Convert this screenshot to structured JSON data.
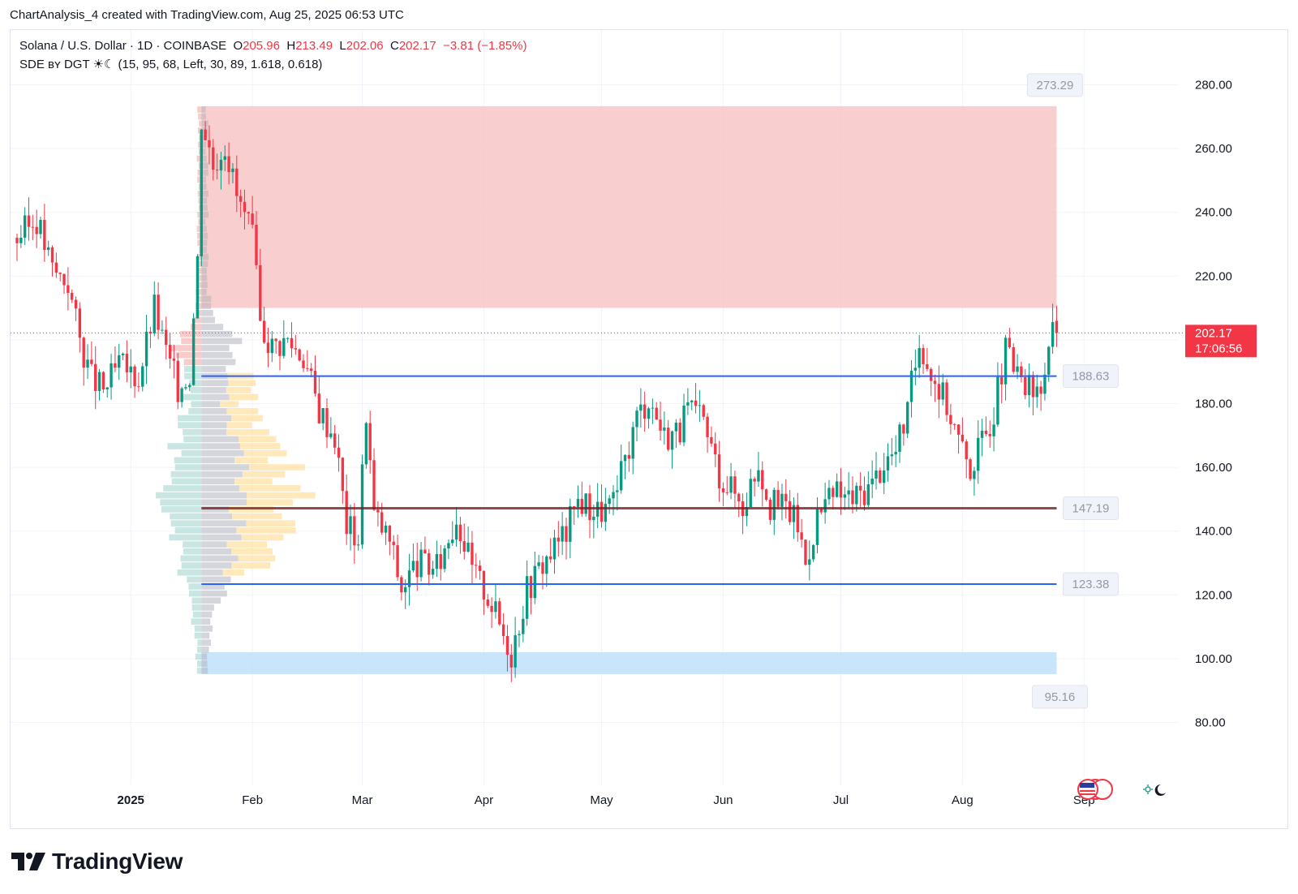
{
  "caption": "ChartAnalysis_4 created with TradingView.com, Aug 25, 2025 06:53 UTC",
  "legend": {
    "symbol": "Solana / U.S. Dollar · 1D · COINBASE",
    "open_label": "O",
    "open": "205.96",
    "high_label": "H",
    "high": "213.49",
    "low_label": "L",
    "low": "202.06",
    "close_label": "C",
    "close": "202.17",
    "change": "−3.81 (−1.85%)",
    "indicator": "SDE ʙʏ DGT ☀☾ (15, 95, 68, Left, 30, 89, 1.618, 0.618)"
  },
  "price_badge": {
    "price": "202.17",
    "countdown": "17:06:56"
  },
  "brand": "TradingView",
  "icons": {
    "logo": "tradingview-logo-icon",
    "session": "day-night-icon",
    "flags": "us-flag-icon"
  },
  "colors": {
    "up": "#089981",
    "down": "#f23645",
    "level": "#2962ff",
    "poc": "#7b1e1e",
    "supply_zone": "#f7c5c5",
    "demand_zone": "#bfe0fb",
    "badge": "#f23645"
  },
  "chart_data": {
    "type": "candlestick",
    "title": "Solana / U.S. Dollar · 1D · COINBASE",
    "ylim": [
      68,
      292
    ],
    "yticks": [
      "280.00",
      "260.00",
      "240.00",
      "220.00",
      "200.00",
      "180.00",
      "160.00",
      "140.00",
      "120.00",
      "100.00",
      "80.00"
    ],
    "ytick_values": [
      280,
      260,
      240,
      220,
      200,
      180,
      160,
      140,
      120,
      100,
      80
    ],
    "xticks": [
      "2025",
      "Feb",
      "Mar",
      "Apr",
      "May",
      "Jun",
      "Jul",
      "Aug",
      "Sep"
    ],
    "xtick_dates": [
      "2025-01-01",
      "2025-02-01",
      "2025-03-01",
      "2025-04-01",
      "2025-05-01",
      "2025-06-01",
      "2025-07-01",
      "2025-08-01",
      "2025-09-01"
    ],
    "x_range": [
      "2024-12-03",
      "2025-09-21"
    ],
    "levels": [
      {
        "value": 273.29,
        "label": "273.29",
        "role": "supply-zone-top"
      },
      {
        "value": 188.63,
        "label": "188.63",
        "role": "support"
      },
      {
        "value": 147.19,
        "label": "147.19",
        "role": "poc"
      },
      {
        "value": 123.38,
        "label": "123.38",
        "role": "support"
      },
      {
        "value": 95.16,
        "label": "95.16",
        "role": "demand-zone-bottom"
      }
    ],
    "supply_zone": {
      "from": 210,
      "to": 273.29,
      "start": "2025-01-19",
      "end": "2025-08-25"
    },
    "demand_zone": {
      "from": 95.16,
      "to": 102,
      "start": "2025-01-19",
      "end": "2025-08-25"
    },
    "volume_profile": {
      "anchor": "2025-01-19",
      "range": [
        95,
        273
      ]
    },
    "last_price": 202.17,
    "anchors": [
      {
        "date": "2024-12-03",
        "close": 232
      },
      {
        "date": "2024-12-08",
        "close": 238
      },
      {
        "date": "2024-12-12",
        "close": 222
      },
      {
        "date": "2024-12-16",
        "close": 218
      },
      {
        "date": "2024-12-19",
        "close": 200
      },
      {
        "date": "2024-12-22",
        "close": 188
      },
      {
        "date": "2024-12-25",
        "close": 184
      },
      {
        "date": "2024-12-29",
        "close": 192
      },
      {
        "date": "2025-01-03",
        "close": 188
      },
      {
        "date": "2025-01-07",
        "close": 210
      },
      {
        "date": "2025-01-10",
        "close": 196
      },
      {
        "date": "2025-01-13",
        "close": 185
      },
      {
        "date": "2025-01-16",
        "close": 190
      },
      {
        "date": "2025-01-18",
        "close": 225
      },
      {
        "date": "2025-01-19",
        "close": 270
      },
      {
        "date": "2025-01-22",
        "close": 255
      },
      {
        "date": "2025-01-25",
        "close": 262
      },
      {
        "date": "2025-01-28",
        "close": 245
      },
      {
        "date": "2025-02-01",
        "close": 232
      },
      {
        "date": "2025-02-03",
        "close": 205
      },
      {
        "date": "2025-02-06",
        "close": 198
      },
      {
        "date": "2025-02-10",
        "close": 200
      },
      {
        "date": "2025-02-14",
        "close": 195
      },
      {
        "date": "2025-02-18",
        "close": 178
      },
      {
        "date": "2025-02-22",
        "close": 170
      },
      {
        "date": "2025-02-25",
        "close": 142
      },
      {
        "date": "2025-02-28",
        "close": 138
      },
      {
        "date": "2025-03-02",
        "close": 178
      },
      {
        "date": "2025-03-04",
        "close": 145
      },
      {
        "date": "2025-03-08",
        "close": 137
      },
      {
        "date": "2025-03-11",
        "close": 122
      },
      {
        "date": "2025-03-15",
        "close": 130
      },
      {
        "date": "2025-03-20",
        "close": 128
      },
      {
        "date": "2025-03-25",
        "close": 145
      },
      {
        "date": "2025-03-29",
        "close": 128
      },
      {
        "date": "2025-04-02",
        "close": 120
      },
      {
        "date": "2025-04-06",
        "close": 108
      },
      {
        "date": "2025-04-08",
        "close": 102
      },
      {
        "date": "2025-04-12",
        "close": 122
      },
      {
        "date": "2025-04-16",
        "close": 130
      },
      {
        "date": "2025-04-22",
        "close": 140
      },
      {
        "date": "2025-04-25",
        "close": 150
      },
      {
        "date": "2025-04-30",
        "close": 146
      },
      {
        "date": "2025-05-04",
        "close": 148
      },
      {
        "date": "2025-05-07",
        "close": 162
      },
      {
        "date": "2025-05-10",
        "close": 176
      },
      {
        "date": "2025-05-13",
        "close": 182
      },
      {
        "date": "2025-05-17",
        "close": 170
      },
      {
        "date": "2025-05-21",
        "close": 172
      },
      {
        "date": "2025-05-23",
        "close": 178
      },
      {
        "date": "2025-05-27",
        "close": 174
      },
      {
        "date": "2025-05-31",
        "close": 158
      },
      {
        "date": "2025-06-04",
        "close": 152
      },
      {
        "date": "2025-06-06",
        "close": 148
      },
      {
        "date": "2025-06-10",
        "close": 162
      },
      {
        "date": "2025-06-13",
        "close": 148
      },
      {
        "date": "2025-06-17",
        "close": 148
      },
      {
        "date": "2025-06-20",
        "close": 142
      },
      {
        "date": "2025-06-22",
        "close": 130
      },
      {
        "date": "2025-06-25",
        "close": 145
      },
      {
        "date": "2025-06-30",
        "close": 152
      },
      {
        "date": "2025-07-04",
        "close": 150
      },
      {
        "date": "2025-07-09",
        "close": 155
      },
      {
        "date": "2025-07-12",
        "close": 162
      },
      {
        "date": "2025-07-15",
        "close": 165
      },
      {
        "date": "2025-07-18",
        "close": 178
      },
      {
        "date": "2025-07-21",
        "close": 200
      },
      {
        "date": "2025-07-24",
        "close": 190
      },
      {
        "date": "2025-07-28",
        "close": 180
      },
      {
        "date": "2025-08-01",
        "close": 165
      },
      {
        "date": "2025-08-03",
        "close": 160
      },
      {
        "date": "2025-08-06",
        "close": 168
      },
      {
        "date": "2025-08-09",
        "close": 178
      },
      {
        "date": "2025-08-12",
        "close": 196
      },
      {
        "date": "2025-08-15",
        "close": 188
      },
      {
        "date": "2025-08-18",
        "close": 184
      },
      {
        "date": "2025-08-21",
        "close": 182
      },
      {
        "date": "2025-08-23",
        "close": 200
      },
      {
        "date": "2025-08-25",
        "close": 202.17
      }
    ]
  }
}
